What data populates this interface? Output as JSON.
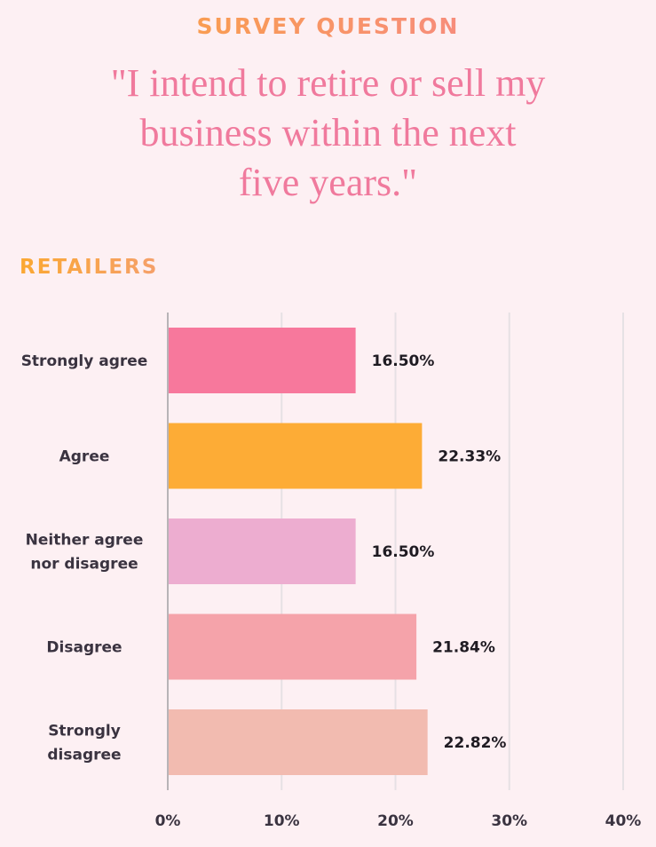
{
  "header": {
    "eyebrow": "SURVEY QUESTION",
    "question": "\"I intend to retire or sell my\nbusiness within the next\nfive years.\""
  },
  "section": {
    "title": "RETAILERS"
  },
  "colors": {
    "background": "#fdf0f3",
    "accent_orange": "#fba832",
    "accent_pink": "#f07a9d",
    "grid": "#e6e1e4",
    "axis": "#b8b4b7"
  },
  "chart_data": {
    "type": "bar",
    "orientation": "horizontal",
    "categories": [
      [
        "Strongly agree"
      ],
      [
        "Agree"
      ],
      [
        "Neither agree",
        "nor disagree"
      ],
      [
        "Disagree"
      ],
      [
        "Strongly",
        "disagree"
      ]
    ],
    "values": [
      16.5,
      22.33,
      16.5,
      21.84,
      22.82
    ],
    "value_labels": [
      "16.50%",
      "22.33%",
      "16.50%",
      "21.84%",
      "22.82%"
    ],
    "bar_colors": [
      "#f7789c",
      "#fdac36",
      "#edadd0",
      "#f5a3aa",
      "#f2bbb0"
    ],
    "xlim": [
      0,
      40
    ],
    "xticks": [
      0,
      10,
      20,
      30,
      40
    ],
    "xtick_labels": [
      "0%",
      "10%",
      "20%",
      "30%",
      "40%"
    ],
    "grid": true
  }
}
